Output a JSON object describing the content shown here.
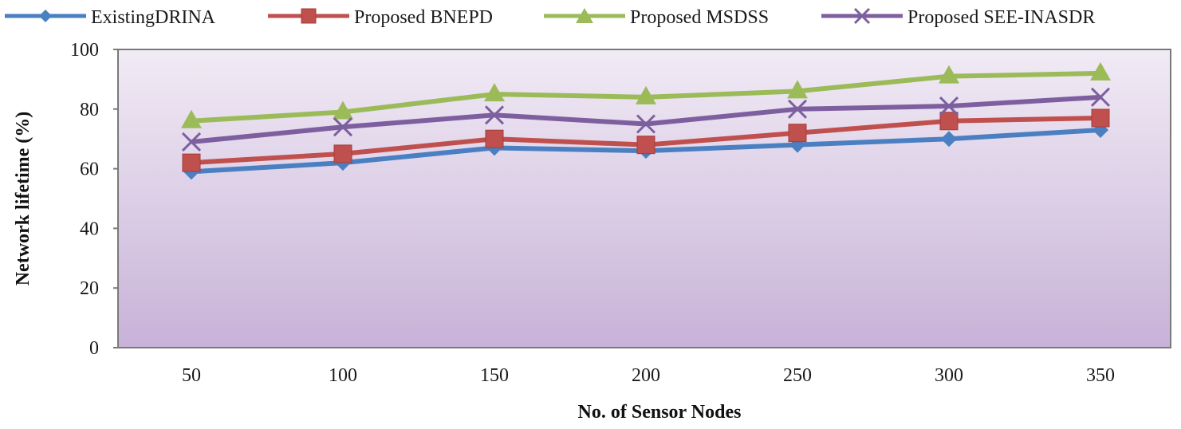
{
  "chart_data": {
    "type": "line",
    "title": "",
    "xlabel": "No. of Sensor Nodes",
    "ylabel": "Network lifetime (%)",
    "ylim": [
      0,
      100
    ],
    "yticks": [
      0,
      20,
      40,
      60,
      80,
      100
    ],
    "categories": [
      "50",
      "100",
      "150",
      "200",
      "250",
      "300",
      "350"
    ],
    "legend_position": "top",
    "series": [
      {
        "name": "ExistingDRINA",
        "color": "#4a7fc1",
        "marker": "diamond",
        "values": [
          59,
          62,
          67,
          66,
          68,
          70,
          73
        ]
      },
      {
        "name": "Proposed BNEPD",
        "color": "#c0504d",
        "marker": "square",
        "values": [
          62,
          65,
          70,
          68,
          72,
          76,
          77
        ]
      },
      {
        "name": "Proposed MSDSS",
        "color": "#9bbb59",
        "marker": "triangle",
        "values": [
          76,
          79,
          85,
          84,
          86,
          91,
          92
        ]
      },
      {
        "name": "Proposed SEE-INASDR",
        "color": "#7d5fa0",
        "marker": "x",
        "values": [
          69,
          74,
          78,
          75,
          80,
          81,
          84
        ]
      }
    ]
  }
}
